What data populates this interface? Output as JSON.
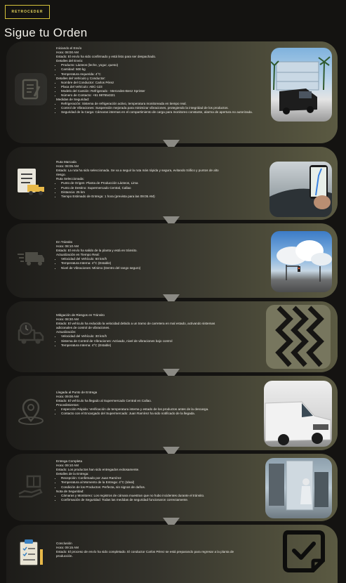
{
  "back_button": "RETROCEDER",
  "title": "Sigue tu Orden",
  "steps": [
    {
      "icon": "clipboard-icon",
      "lines": [
        "Iniciando el Envío",
        "Hora: 08:00 AM",
        "Estado: El envío ha sido confirmado y está listo para ser despachado.",
        "Detalles del Envío:"
      ],
      "bullets1": [
        "Producto: Lácteos (leche, yogur, queso)",
        "Cantidad: 500 kg",
        "Temperatura requerida: 4°C"
      ],
      "sub2": "Detalles del Vehículo y Conductor:",
      "bullets2": [
        "Nombre del Conductor: Carlos Pérez",
        "Placa del Vehículo: ABC-123",
        "Modelo del Camión: Refrigerado - Mercedes-Benz Sprinter",
        "Número de Contacto: +51 987654321"
      ],
      "sub3": "Medidas de Seguridad:",
      "bullets3": [
        "Refrigeración: Sistema de refrigeración activo, temperatura monitoreada en tiempo real.",
        "Control de Vibraciones: Suspensión mejorada para minimizar vibraciones, protegiendo la integridad de los productos.",
        "Seguridad de la Carga: Cámaras internas en el compartimiento de carga para monitoreo constante, alarma de apertura no autorizada."
      ]
    },
    {
      "icon": "document-truck-icon",
      "lines": [
        "Ruta Marcada",
        "Hora: 08:05 AM",
        "Estado: La ruta ha sido seleccionada. Se va a seguir la ruta más rápida y segura, evitando tráfico y puntos de alto riesgo.",
        "Ruta Seleccionada:"
      ],
      "bullets1": [
        "Punto de Origen: Planta de Producción Lácteos, Lima",
        "Punto de Destino: Supermercado Central, Callao",
        "Distancia: 25 km",
        "Tiempo Estimado de Entrega: 1 hora (prevista para las 09:05 AM)"
      ]
    },
    {
      "icon": "fast-truck-icon",
      "lines": [
        "En Tránsito",
        "Hora: 08:10 AM",
        "Estado: El envío ha salido de la planta y está en tránsito.",
        "Actualización en Tiempo Real:"
      ],
      "bullets1": [
        "Velocidad del Vehículo: 60 km/h",
        "Temperatura Interna: 4°C (Estable)",
        "Nivel de Vibraciones: Mínimo (Dentro del rango seguro)"
      ]
    },
    {
      "icon": "truck-clock-icon",
      "lines": [
        "Mitigación de Riesgos en Tránsito",
        "Hora: 08:30 AM",
        "Estado: El vehículo ha reducido la velocidad debido a un tramo de carretera en mal estado, activando sistemas adicionales de control de vibraciones.",
        "Actualización:"
      ],
      "bullets1": [
        "Velocidad del Vehículo: 30 km/h",
        "Sistema de Control de Vibraciones: Activado, nivel de vibraciones bajo control",
        "Temperatura Interna: 4°C (Estable)"
      ]
    },
    {
      "icon": "location-pin-icon",
      "lines": [
        "Llegada al Punto de Entrega",
        "Hora: 09:00 AM",
        "Estado: El vehículo ha llegado al Supermercado Central en Callao.",
        "Procedimientos:"
      ],
      "bullets1": [
        "Inspección Rápida: Verificación de temperatura interna y estado de los productos antes de la descarga.",
        "Contacto con el Encargado del Supermercado: Juan Ramírez ha sido notificado de la llegada."
      ]
    },
    {
      "icon": "package-hand-icon",
      "lines": [
        "Entrega Completa",
        "Hora: 09:10 AM",
        "Estado: Los productos han sido entregados exitosamente.",
        "Detalles de la Entrega:"
      ],
      "bullets1": [
        "Recepción: Confirmado por Juan Ramírez",
        "Temperatura al Momento de la Entrega: 4°C (Ideal)",
        "Condición de los Productos: Perfecta, sin signos de daños."
      ],
      "sub2": "Nota de Seguridad:",
      "bullets2": [
        "Cámaras y Monitoreo: Los registros de cámara muestran que no hubo incidentes durante el tránsito.",
        "Confirmación de Seguridad: Todas las medidas de seguridad funcionaron correctamente."
      ]
    },
    {
      "icon": "checklist-icon",
      "lines": [
        "Conclusión",
        "Hora: 09:15 AM",
        "Estado: El proceso de envío ha sido completado. El conductor Carlos Pérez se está preparando para regresar a la planta de producción."
      ]
    }
  ]
}
